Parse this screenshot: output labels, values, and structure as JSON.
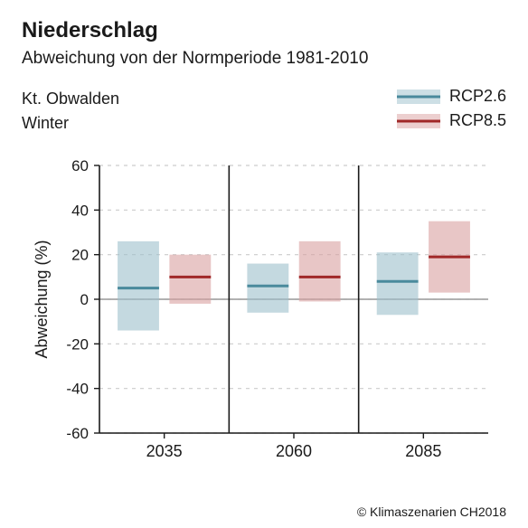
{
  "title": "Niederschlag",
  "subtitle": "Abweichung von der Normperiode 1981-2010",
  "region": "Kt. Obwalden",
  "season": "Winter",
  "credit": "© Klimaszenarien CH2018",
  "legend": {
    "rcp26": {
      "label": "RCP2.6",
      "fill": "#9cc0cb",
      "line": "#4a8a9c"
    },
    "rcp85": {
      "label": "RCP8.5",
      "fill": "#d9a0a0",
      "line": "#a02828"
    }
  },
  "chart": {
    "type": "box-band",
    "ylabel": "Abweichung (%)",
    "ylim": [
      -60,
      60
    ],
    "ytick_step": 20,
    "yticks": [
      60,
      40,
      20,
      0,
      -20,
      -40,
      -60
    ],
    "categories": [
      "2035",
      "2060",
      "2085"
    ],
    "grid_color": "#cccccc",
    "grid_dash": "4,5",
    "axis_color": "#1a1a1a",
    "zero_line_color": "#999999",
    "separator_color": "#1a1a1a",
    "background_color": "#ffffff",
    "label_fontsize": 18,
    "tick_fontsize": 17,
    "band_opacity": 0.6,
    "line_width": 3,
    "group_gap": 0.08,
    "bar_width": 0.32,
    "series": [
      {
        "name": "RCP2.6",
        "fill": "#9cc0cb",
        "line": "#4a8a9c",
        "data": [
          {
            "low": -14,
            "median": 5,
            "high": 26
          },
          {
            "low": -6,
            "median": 6,
            "high": 16
          },
          {
            "low": -7,
            "median": 8,
            "high": 21
          }
        ]
      },
      {
        "name": "RCP8.5",
        "fill": "#d9a0a0",
        "line": "#a02828",
        "data": [
          {
            "low": -2,
            "median": 10,
            "high": 20
          },
          {
            "low": -1,
            "median": 10,
            "high": 26
          },
          {
            "low": 3,
            "median": 19,
            "high": 35
          }
        ]
      }
    ]
  }
}
